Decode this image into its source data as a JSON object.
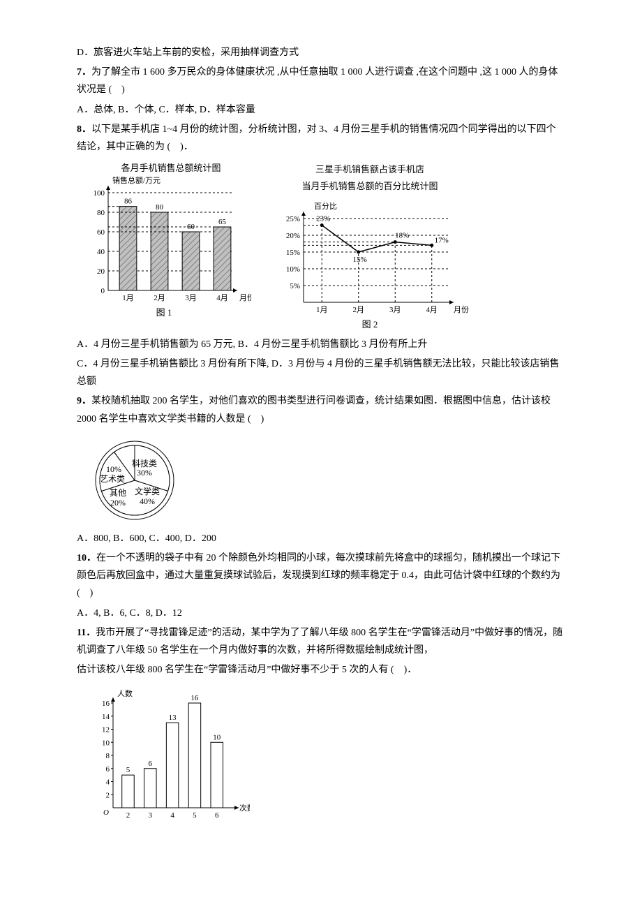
{
  "q6d": "D．旅客进火车站上车前的安检，采用抽样调查方式",
  "q7": {
    "num": "7．",
    "stem": "为了解全市 1 600 多万民众的身体健康状况 ,从中任意抽取 1 000 人进行调查 ,在这个问题中 ,这 1 000 人的身体状况是 (　)",
    "opts": "A．总体, B．个体, C．样本, D．样本容量"
  },
  "q8": {
    "num": "8．",
    "stem": "以下是某手机店 1~4 月份的统计图，分析统计图，对 3、4 月份三星手机的销售情况四个同学得出的以下四个结论，其中正确的为 (　)．",
    "chart1": {
      "title": "各月手机销售总额统计图",
      "ylabel": "销售总额/万元",
      "xlabel": "月份",
      "caption": "图 1",
      "categories": [
        "1月",
        "2月",
        "3月",
        "4月"
      ],
      "values": [
        86,
        80,
        60,
        65
      ],
      "ymax": 100,
      "ytick": 20,
      "bar_fill": "#c0c0c0",
      "bar_stroke": "#000",
      "axis_color": "#000",
      "text_color": "#000",
      "hatch_color": "#808080",
      "font_size": 11
    },
    "chart2": {
      "title1": "三星手机销售额占该手机店",
      "title2": "当月手机销售总额的百分比统计图",
      "ylabel": "百分比",
      "xlabel": "月份",
      "caption": "图 2",
      "categories": [
        "1月",
        "2月",
        "3月",
        "4月"
      ],
      "values_pct": [
        23,
        15,
        18,
        17
      ],
      "ymax": 25,
      "ytick": 5,
      "axis_color": "#000",
      "line_color": "#000",
      "text_color": "#000",
      "font_size": 11
    },
    "optA": "A．4 月份三星手机销售额为 65 万元, B．4 月份三星手机销售额比 3 月份有所上升",
    "optC": "C．4 月份三星手机销售额比 3 月份有所下降, D．3 月份与 4 月份的三星手机销售额无法比较，只能比较该店销售总额"
  },
  "q9": {
    "num": "9．",
    "stem": "某校随机抽取 200 名学生，对他们喜欢的图书类型进行问卷调查，统计结果如图．根据图中信息，估计该校 2000 名学生中喜欢文学类书籍的人数是 (　)",
    "pie": {
      "slices": [
        {
          "label": "科技类",
          "pct": 30
        },
        {
          "label": "艺术类",
          "pct": 10,
          "pct_label": "10%"
        },
        {
          "label": "其他",
          "pct": 20
        },
        {
          "label": "文学类",
          "pct": 40
        }
      ],
      "stroke": "#000",
      "font_size": 12
    },
    "opts": "A．800, B．600, C．400, D．200"
  },
  "q10": {
    "num": "10．",
    "stem": "在一个不透明的袋子中有 20 个除颜色外均相同的小球，每次摸球前先将盒中的球摇匀，随机摸出一个球记下颜色后再放回盒中，通过大量重复摸球试验后，发现摸到红球的频率稳定于 0.4，由此可估计袋中红球的个数约为 (　)",
    "opts": "A．4, B．6, C．8, D．12"
  },
  "q11": {
    "num": "11．",
    "stem1": "我市开展了“寻找雷锋足迹”的活动，某中学为了了解八年级 800 名学生在“学雷锋活动月”中做好事的情况，随机调查了八年级 50 名学生在一个月内做好事的次数，并将所得数据绘制成统计图，",
    "stem2": "估计该校八年级 800 名学生在“学雷锋活动月”中做好事不少于 5 次的人有 (　)．",
    "bar": {
      "ylabel": "人数",
      "xlabel": "次数",
      "x": [
        2,
        3,
        4,
        5,
        6
      ],
      "y": [
        5,
        6,
        13,
        16,
        10
      ],
      "yticks": [
        2,
        4,
        6,
        8,
        10,
        12,
        14,
        16
      ],
      "bar_fill": "#ffffff",
      "bar_stroke": "#000",
      "axis_color": "#000",
      "font_size": 11
    }
  }
}
